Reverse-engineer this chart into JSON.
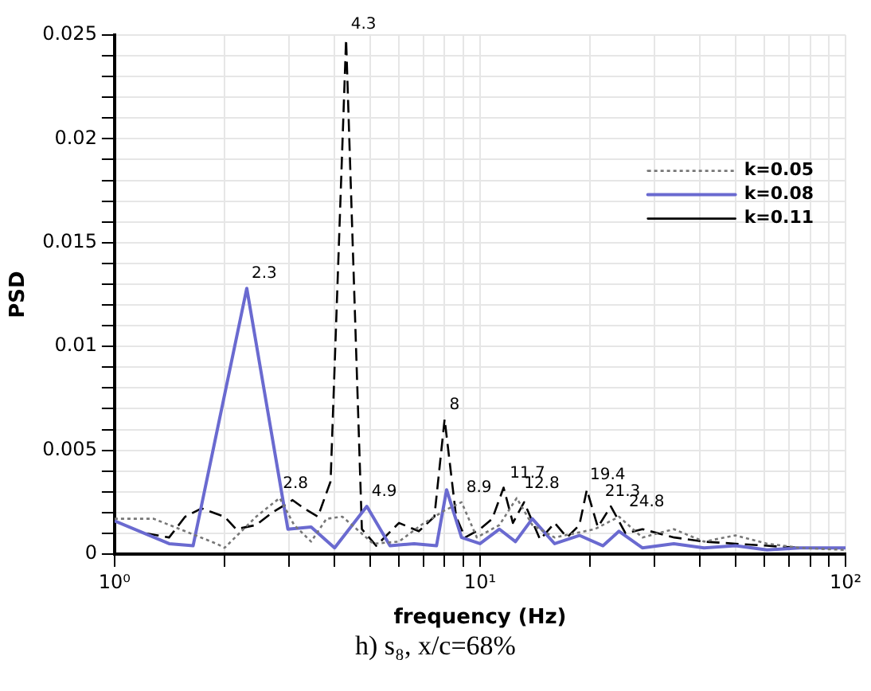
{
  "chart_data": {
    "type": "line",
    "xlabel": "frequency (Hz)",
    "ylabel": "PSD",
    "log": "x",
    "grid": true,
    "legend": "top right",
    "marker": "none",
    "xlim": [
      1,
      100
    ],
    "ylim": [
      0,
      0.025
    ],
    "xticks": [
      {
        "value": 1,
        "label": "10⁰"
      },
      {
        "value": 2,
        "label": null
      },
      {
        "value": 3,
        "label": null
      },
      {
        "value": 4,
        "label": null
      },
      {
        "value": 5,
        "label": null
      },
      {
        "value": 6,
        "label": null
      },
      {
        "value": 7,
        "label": null
      },
      {
        "value": 8,
        "label": null
      },
      {
        "value": 9,
        "label": null
      },
      {
        "value": 10,
        "label": "10¹"
      },
      {
        "value": 20,
        "label": null
      },
      {
        "value": 30,
        "label": null
      },
      {
        "value": 40,
        "label": null
      },
      {
        "value": 50,
        "label": null
      },
      {
        "value": 60,
        "label": null
      },
      {
        "value": 70,
        "label": null
      },
      {
        "value": 80,
        "label": null
      },
      {
        "value": 90,
        "label": null
      },
      {
        "value": 100,
        "label": "10²"
      }
    ],
    "yticks": [
      0,
      {
        "value": 0.001,
        "label": null
      },
      {
        "value": 0.002,
        "label": null
      },
      {
        "value": 0.003,
        "label": null
      },
      {
        "value": 0.004,
        "label": null
      },
      0.005,
      {
        "value": 0.006,
        "label": null
      },
      {
        "value": 0.007,
        "label": null
      },
      {
        "value": 0.008,
        "label": null
      },
      {
        "value": 0.009,
        "label": null
      },
      0.01,
      {
        "value": 0.011,
        "label": null
      },
      {
        "value": 0.012,
        "label": null
      },
      {
        "value": 0.013,
        "label": null
      },
      {
        "value": 0.014,
        "label": null
      },
      0.015,
      {
        "value": 0.016,
        "label": null
      },
      {
        "value": 0.017,
        "label": null
      },
      {
        "value": 0.018,
        "label": null
      },
      {
        "value": 0.019,
        "label": null
      },
      0.02,
      {
        "value": 0.021,
        "label": null
      },
      {
        "value": 0.022,
        "label": null
      },
      {
        "value": 0.023,
        "label": null
      },
      {
        "value": 0.024,
        "label": null
      },
      0.025
    ],
    "series": [
      {
        "name": "k=0.05",
        "color": "#777777",
        "line_style": "dotted",
        "x": [
          1,
          1.28,
          1.56,
          1.9,
          2.0,
          2.44,
          2.83,
          3.1,
          3.45,
          3.8,
          4.2,
          4.6,
          5.1,
          6.0,
          6.9,
          8.0,
          8.9,
          9.8,
          11.3,
          12.6,
          13.9,
          16,
          20.6,
          24,
          27.8,
          33.9,
          41,
          50,
          61,
          75,
          100
        ],
        "values": [
          0.0017,
          0.0017,
          0.0011,
          0.0005,
          0.0003,
          0.0018,
          0.0027,
          0.0014,
          0.0006,
          0.0017,
          0.0018,
          0.0012,
          0.0005,
          0.0006,
          0.0014,
          0.0021,
          0.0025,
          0.0008,
          0.0014,
          0.0027,
          0.0014,
          0.0008,
          0.0012,
          0.0018,
          0.0008,
          0.0012,
          0.0006,
          0.0009,
          0.0005,
          0.0003,
          0.0002
        ]
      },
      {
        "name": "k=0.08",
        "color": "#6a6ad0",
        "line_style": "solid",
        "x": [
          1,
          1.41,
          1.64,
          2.3,
          2.98,
          3.45,
          4.0,
          4.9,
          5.67,
          6.6,
          7.6,
          8.1,
          8.9,
          10,
          11.3,
          12.5,
          13.9,
          16,
          18.7,
          21.7,
          24,
          27.8,
          33.9,
          41,
          50,
          61,
          75,
          100
        ],
        "values": [
          0.0016,
          0.0005,
          0.0004,
          0.0128,
          0.0012,
          0.0013,
          0.0003,
          0.0023,
          0.0004,
          0.0005,
          0.0004,
          0.0031,
          0.0008,
          0.0005,
          0.0012,
          0.0006,
          0.0017,
          0.0005,
          0.0009,
          0.0004,
          0.0011,
          0.0003,
          0.0005,
          0.0003,
          0.0004,
          0.0002,
          0.0003,
          0.0003
        ]
      },
      {
        "name": "k=0.11",
        "color": "#000000",
        "line_style": "dashed",
        "x": [
          1.22,
          1.41,
          1.56,
          1.73,
          2.0,
          2.15,
          2.44,
          2.7,
          3.07,
          3.3,
          3.6,
          3.9,
          4.3,
          4.75,
          5.2,
          6.0,
          6.8,
          7.5,
          8.0,
          8.6,
          9.1,
          10,
          10.8,
          11.6,
          12.3,
          13.2,
          14.6,
          16,
          17.3,
          18.7,
          19.6,
          21,
          22.8,
          25,
          27.8,
          34,
          41,
          50,
          61,
          75,
          100
        ],
        "values": [
          0.001,
          0.0008,
          0.0018,
          0.0022,
          0.0018,
          0.0012,
          0.0014,
          0.002,
          0.0026,
          0.0022,
          0.0018,
          0.0035,
          0.0248,
          0.0012,
          0.0004,
          0.0015,
          0.0011,
          0.0018,
          0.0065,
          0.0018,
          0.0008,
          0.0012,
          0.0017,
          0.0032,
          0.0015,
          0.0025,
          0.0007,
          0.0015,
          0.0008,
          0.0014,
          0.0031,
          0.0013,
          0.0023,
          0.001,
          0.0012,
          0.0008,
          0.0006,
          0.0005,
          0.0004,
          0.0003,
          0.0003
        ]
      }
    ],
    "annotations": [
      {
        "text": "2.3",
        "x": 2.3,
        "y": 0.0128
      },
      {
        "text": "4.3",
        "x": 4.3,
        "y": 0.0248
      },
      {
        "text": "2.8",
        "x": 2.8,
        "y": 0.0027
      },
      {
        "text": "4.9",
        "x": 4.9,
        "y": 0.0023
      },
      {
        "text": "8",
        "x": 8,
        "y": 0.0065
      },
      {
        "text": "8.9",
        "x": 8.9,
        "y": 0.0025
      },
      {
        "text": "11.7",
        "x": 11.7,
        "y": 0.0032
      },
      {
        "text": "12.8",
        "x": 12.8,
        "y": 0.0027
      },
      {
        "text": "19.4",
        "x": 19.4,
        "y": 0.0031
      },
      {
        "text": "21.3",
        "x": 21.3,
        "y": 0.0023
      },
      {
        "text": "24.8",
        "x": 24.8,
        "y": 0.0018
      },
      "h) s₈, x/c=68%"
    ]
  }
}
